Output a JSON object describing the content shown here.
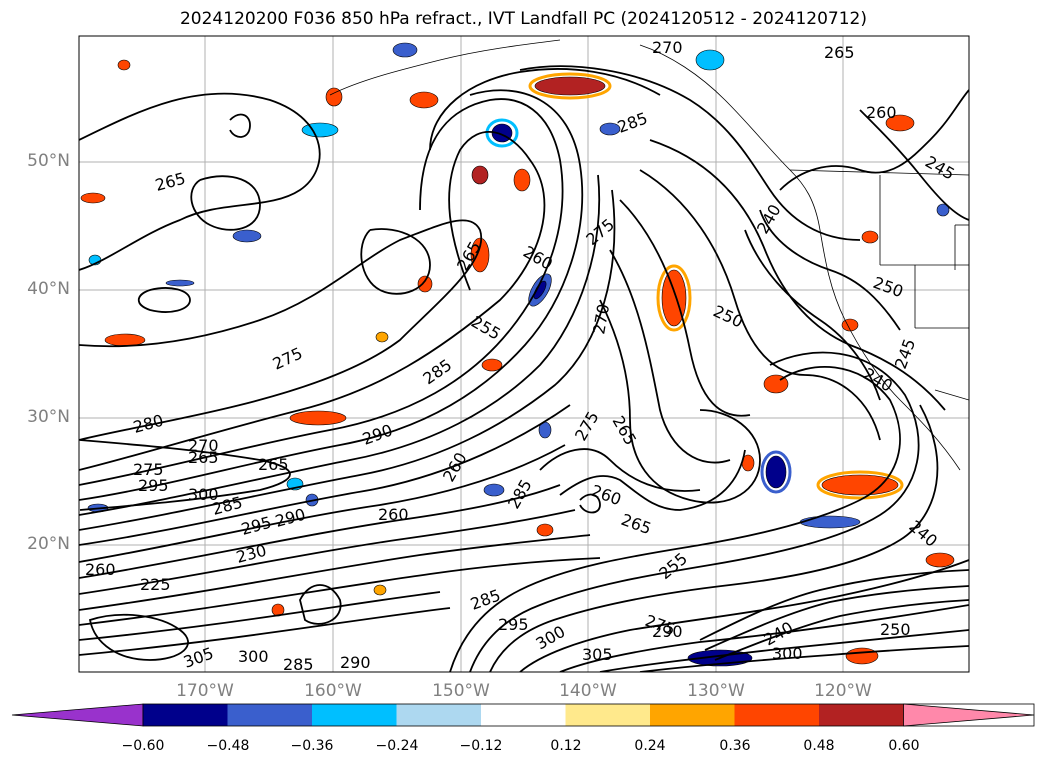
{
  "title": "2024120200 F036 850 hPa refract., IVT Landfall PC (2024120512 - 2024120712)",
  "lat_labels": [
    "50°N",
    "40°N",
    "30°N",
    "20°N"
  ],
  "lon_labels": [
    "170°W",
    "160°W",
    "150°W",
    "140°W",
    "130°W",
    "120°W"
  ],
  "contour_labels": [
    "270",
    "265",
    "285",
    "260",
    "245",
    "265",
    "275",
    "240",
    "265",
    "260",
    "250",
    "270",
    "255",
    "250",
    "275",
    "285",
    "240",
    "245",
    "280",
    "290",
    "275",
    "265",
    "270",
    "265",
    "275",
    "265",
    "260",
    "295",
    "300",
    "285",
    "285",
    "260",
    "290",
    "295",
    "260",
    "240",
    "230",
    "225",
    "265",
    "260",
    "255",
    "295",
    "300",
    "275",
    "290",
    "285",
    "305",
    "300",
    "285",
    "290",
    "300",
    "305",
    "240",
    "250"
  ],
  "colorbar": {
    "ticks": [
      "−0.60",
      "−0.48",
      "−0.36",
      "−0.24",
      "−0.12",
      "0.12",
      "0.24",
      "0.36",
      "0.48",
      "0.60"
    ],
    "colors": [
      "#9932cc",
      "#00008b",
      "#3a5fcd",
      "#00bfff",
      "#add8f0",
      "#ffffff",
      "#ffe98c",
      "#ffa500",
      "#ff4500",
      "#b22222",
      "#ff88aa"
    ]
  },
  "colors": {
    "neg_strong": "#00008b",
    "neg_mid": "#3a5fcd",
    "neg_light": "#00bfff",
    "pos_light": "#ffa500",
    "pos_mid": "#ff4500",
    "pos_strong": "#b22222",
    "grid": "#b0b0b0",
    "tick_text": "#808080"
  }
}
